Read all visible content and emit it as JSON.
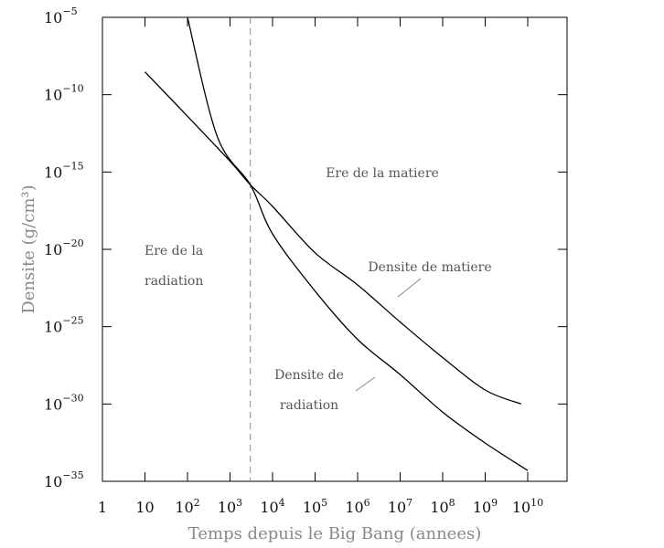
{
  "chart_data": {
    "type": "line",
    "xlabel": "Temps depuis le Big Bang (annees)",
    "ylabel": "Densite (g/cm³)",
    "x_scale": "log",
    "y_scale": "log",
    "xlim": [
      1,
      100000000000.0
    ],
    "ylim": [
      1e-35,
      1e-05
    ],
    "grid": false,
    "x_ticks": [
      {
        "base": "1",
        "exp": ""
      },
      {
        "base": "10",
        "exp": ""
      },
      {
        "base": "10",
        "exp": "2"
      },
      {
        "base": "10",
        "exp": "3"
      },
      {
        "base": "10",
        "exp": "4"
      },
      {
        "base": "10",
        "exp": "5"
      },
      {
        "base": "10",
        "exp": "6"
      },
      {
        "base": "10",
        "exp": "7"
      },
      {
        "base": "10",
        "exp": "8"
      },
      {
        "base": "10",
        "exp": "9"
      },
      {
        "base": "10",
        "exp": "10"
      }
    ],
    "y_ticks": [
      {
        "base": "10",
        "exp": "−5"
      },
      {
        "base": "10",
        "exp": "−10"
      },
      {
        "base": "10",
        "exp": "−15"
      },
      {
        "base": "10",
        "exp": "−20"
      },
      {
        "base": "10",
        "exp": "−25"
      },
      {
        "base": "10",
        "exp": "−30"
      },
      {
        "base": "10",
        "exp": "−35"
      }
    ],
    "series": [
      {
        "name": "Densite de matiere",
        "x": [
          10,
          100,
          1000,
          3000,
          10000,
          100000,
          1000000,
          10000000,
          100000000,
          1000000000,
          7000000000
        ],
        "y": [
          3e-09,
          4e-12,
          5e-15,
          1.5e-16,
          6e-18,
          6e-21,
          5e-23,
          2e-25,
          1e-27,
          8e-30,
          1e-30
        ]
      },
      {
        "name": "Densite de radiation",
        "x": [
          100,
          500,
          3000,
          10000,
          100000,
          1000000,
          10000000,
          100000000,
          1000000000,
          10000000000
        ],
        "y": [
          1e-05,
          2e-13,
          1.5e-16,
          1e-19,
          2e-23,
          1.5e-26,
          8e-29,
          3e-31,
          3e-33,
          5e-35
        ]
      }
    ],
    "vline": {
      "x": 3000,
      "style": "dashed"
    },
    "annotations": [
      {
        "lines": [
          "Ere de la matiere"
        ]
      },
      {
        "lines": [
          "Ere de la",
          "radiation"
        ]
      },
      {
        "lines": [
          "Densite de matiere"
        ]
      },
      {
        "lines": [
          "Densite de",
          "radiation"
        ]
      }
    ]
  }
}
